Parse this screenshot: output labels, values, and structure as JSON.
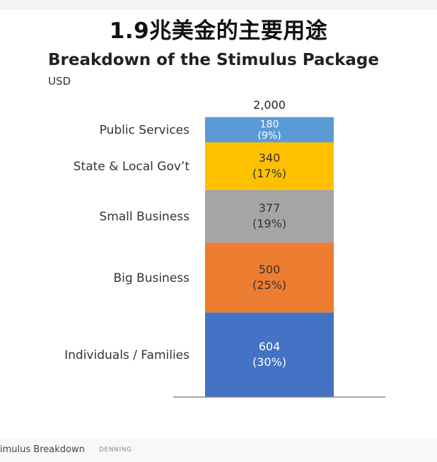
{
  "header": {
    "main_title": "1.9兆美金的主要用途"
  },
  "chart_data": {
    "type": "bar",
    "stacked": true,
    "title": "Breakdown of the Stimulus Package",
    "unit": "USD",
    "total_label": "2,000",
    "total": 2000,
    "categories": [
      "Individuals / Families",
      "Big Business",
      "Small Business",
      "State & Local Gov’t",
      "Public Services"
    ],
    "series": [
      {
        "category": "Individuals / Families",
        "value": 604,
        "value_label": "604",
        "percent_label": "(30%)",
        "color": "#4472c4"
      },
      {
        "category": "Big Business",
        "value": 500,
        "value_label": "500",
        "percent_label": "(25%)",
        "color": "#ed7d31"
      },
      {
        "category": "Small Business",
        "value": 377,
        "value_label": "377",
        "percent_label": "(19%)",
        "color": "#a5a5a5"
      },
      {
        "category": "State & Local Gov’t",
        "value": 340,
        "value_label": "340",
        "percent_label": "(17%)",
        "color": "#ffc000"
      },
      {
        "category": "Public Services",
        "value": 180,
        "value_label": "180",
        "percent_label": "(9%)",
        "color": "#5b9bd5"
      }
    ],
    "ylim": [
      0,
      2000
    ],
    "grid": false,
    "legend": "none"
  },
  "footer": {
    "caption": "imulus Breakdown",
    "credit": "DENNING"
  }
}
